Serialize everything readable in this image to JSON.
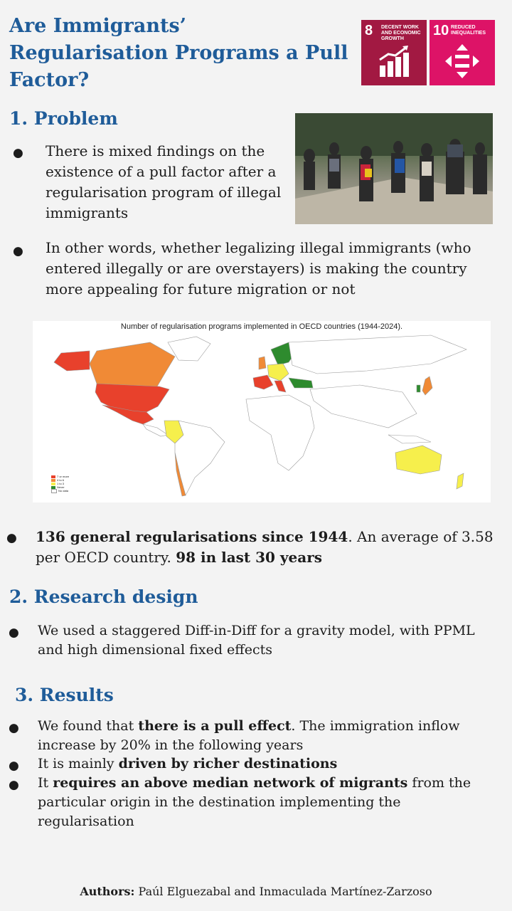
{
  "title": "Are Immigrants’ Regularisation Programs a Pull Factor?",
  "sdg": [
    {
      "number": "8",
      "label": "DECENT WORK AND ECONOMIC GROWTH",
      "color": "#a21942"
    },
    {
      "number": "10",
      "label": "REDUCED INEQUALITIES",
      "color": "#dd1367"
    }
  ],
  "problem": {
    "heading": "1. Problem",
    "bullets": [
      "There is mixed findings on the existence of a pull factor after a regularisation program of illegal immigrants",
      "In other words, whether legalizing illegal immigrants (who entered illegally or are overstayers) is making the country more appealing for future migration or not"
    ]
  },
  "map": {
    "title": "Number of regularisation programs implemented in OECD countries (1944-2024).",
    "legend": [
      {
        "label": "7 or more",
        "color": "#e8412c"
      },
      {
        "label": "4 to 6",
        "color": "#f08a36"
      },
      {
        "label": "1 to 3",
        "color": "#f6ef4c"
      },
      {
        "label": "Never",
        "color": "#2e8b2e"
      },
      {
        "label": "No data",
        "color": "#ffffff"
      }
    ]
  },
  "stats": {
    "bold1": "136 general regularisations since 1944",
    "text1": ". An average of 3.58 per OECD country. ",
    "bold2": "98 in last 30 years"
  },
  "design": {
    "heading": "2. Research design",
    "bullet": "We used a staggered Diff-in-Diff for a gravity model, with PPML and high dimensional fixed effects"
  },
  "results": {
    "heading": "3. Results",
    "b1_pre": "We found that ",
    "b1_bold": "there is a pull effect",
    "b1_post": ". The immigration inflow increase by 20% in the following years",
    "b2_pre": "It is mainly ",
    "b2_bold": "driven by richer destinations",
    "b3_pre": "It ",
    "b3_bold": "requires an above median network of migrants",
    "b3_post": " from the particular origin in the destination implementing the regularisation"
  },
  "authors": {
    "label": "Authors:",
    "names": " Paúl Elguezabal and Inmaculada Martínez-Zarzoso"
  }
}
